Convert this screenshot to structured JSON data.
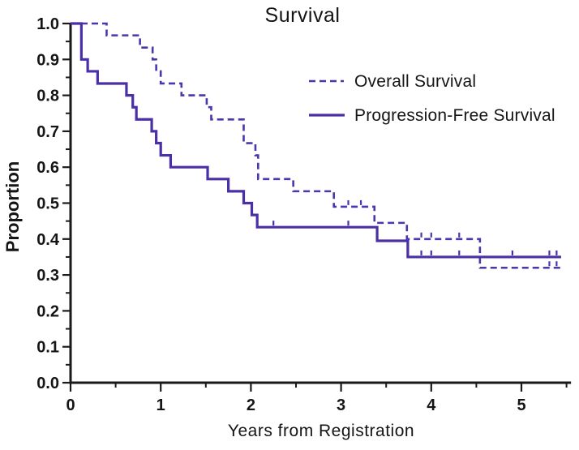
{
  "chart_data": {
    "type": "line",
    "subtype": "kaplan-meier-step",
    "title": "Survival",
    "xlabel": "Years from Registration",
    "ylabel": "Proportion",
    "xlim": [
      0,
      5.55
    ],
    "ylim": [
      0.0,
      1.0
    ],
    "grid": false,
    "legend_position": "inside-upper-right",
    "x_major_ticks": [
      0,
      1,
      2,
      3,
      4,
      5
    ],
    "x_tick_labels": [
      "0",
      "1",
      "2",
      "3",
      "4",
      "5"
    ],
    "x_minor_ticks": [
      0.5,
      1.5,
      2.5,
      3.5,
      4.5,
      5.5
    ],
    "y_major_ticks": [
      1.0,
      0.9,
      0.8,
      0.7,
      0.6,
      0.5,
      0.4,
      0.3,
      0.2,
      0.1,
      0.0
    ],
    "y_tick_labels": [
      "1.0",
      "0.9",
      "0.8",
      "0.7",
      "0.6",
      "0.5",
      "0.4",
      "0.3",
      "0.2",
      "0.1",
      "0.0"
    ],
    "y_minor_ticks": [
      0.95,
      0.85,
      0.75,
      0.65,
      0.55,
      0.45,
      0.35,
      0.25,
      0.15,
      0.05
    ],
    "axis_color": "#1a1a1a",
    "series": [
      {
        "name": "Overall Survival",
        "line_style": "dashed",
        "color": "#4C35AE",
        "start": [
          0,
          1.0
        ],
        "end_time": 5.44,
        "drops": [
          [
            0.4,
            0.967
          ],
          [
            0.77,
            0.933
          ],
          [
            0.91,
            0.9
          ],
          [
            0.95,
            0.867
          ],
          [
            1.0,
            0.833
          ],
          [
            1.23,
            0.8
          ],
          [
            1.51,
            0.767
          ],
          [
            1.56,
            0.733
          ],
          [
            1.92,
            0.667
          ],
          [
            2.05,
            0.633
          ],
          [
            2.08,
            0.567
          ],
          [
            2.47,
            0.533
          ],
          [
            2.92,
            0.49
          ],
          [
            3.37,
            0.445
          ],
          [
            3.73,
            0.4
          ],
          [
            4.54,
            0.32
          ]
        ],
        "censor_marks": [
          [
            3.08,
            0.49
          ],
          [
            3.22,
            0.49
          ],
          [
            3.89,
            0.4
          ],
          [
            4.0,
            0.4
          ],
          [
            4.31,
            0.4
          ],
          [
            5.31,
            0.32
          ],
          [
            5.39,
            0.32
          ]
        ]
      },
      {
        "name": "Progression-Free Survival",
        "line_style": "solid",
        "color": "#4B2FA6",
        "start": [
          0,
          1.0
        ],
        "end_time": 5.44,
        "drops": [
          [
            0.12,
            0.9
          ],
          [
            0.19,
            0.867
          ],
          [
            0.3,
            0.833
          ],
          [
            0.62,
            0.8
          ],
          [
            0.69,
            0.767
          ],
          [
            0.73,
            0.733
          ],
          [
            0.9,
            0.7
          ],
          [
            0.95,
            0.667
          ],
          [
            1.0,
            0.633
          ],
          [
            1.11,
            0.6
          ],
          [
            1.52,
            0.567
          ],
          [
            1.75,
            0.533
          ],
          [
            1.92,
            0.5
          ],
          [
            2.01,
            0.467
          ],
          [
            2.07,
            0.433
          ],
          [
            3.4,
            0.395
          ],
          [
            3.74,
            0.35
          ]
        ],
        "censor_marks": [
          [
            2.25,
            0.433
          ],
          [
            3.08,
            0.433
          ],
          [
            3.89,
            0.35
          ],
          [
            4.0,
            0.35
          ],
          [
            4.31,
            0.35
          ],
          [
            4.9,
            0.35
          ],
          [
            5.31,
            0.35
          ],
          [
            5.39,
            0.35
          ]
        ]
      }
    ]
  },
  "legend": {
    "items": [
      {
        "label": "Overall Survival",
        "style": "dashed"
      },
      {
        "label": "Progression-Free Survival",
        "style": "solid"
      }
    ]
  }
}
